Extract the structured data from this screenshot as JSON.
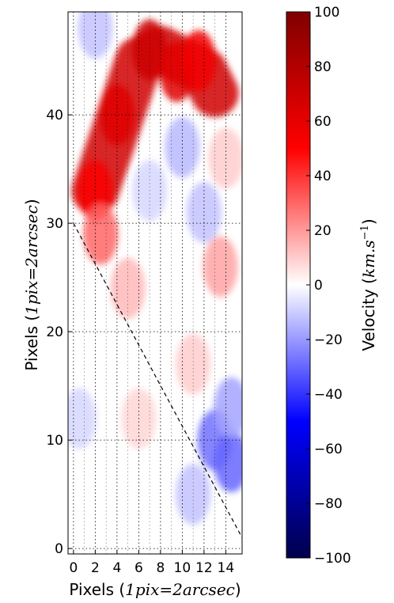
{
  "chart_data": {
    "type": "heatmap",
    "title": "",
    "xlabel": "Pixels (1pix = 2arcsec)",
    "ylabel": "Pixels (1pix = 2arcsec)",
    "xlabel_parts": {
      "plain": "Pixels (",
      "math": "1pix",
      "eq": "=",
      "math2": "2arcsec",
      "close": ")"
    },
    "ylabel_parts": {
      "plain": "Pixels (",
      "math": "1pix",
      "eq": "=",
      "math2": "2arcsec",
      "close": ")"
    },
    "xlim": [
      -0.5,
      15.5
    ],
    "ylim": [
      -0.5,
      49.5
    ],
    "xticks": [
      0,
      2,
      4,
      6,
      8,
      10,
      12,
      14
    ],
    "yticks": [
      0,
      10,
      20,
      30,
      40
    ],
    "grid": true,
    "grid_style": "dotted",
    "colormap": "seismic",
    "colorbar": {
      "label_plain": "Velocity (",
      "label_math": "km.s",
      "label_sup": "−1",
      "label_close": ")",
      "range": [
        -100,
        100
      ],
      "ticks": [
        100,
        80,
        60,
        40,
        20,
        0,
        -20,
        -40,
        -60,
        -80,
        -100
      ],
      "tick_labels": [
        "100",
        "80",
        "60",
        "40",
        "20",
        "0",
        "−20",
        "−40",
        "−60",
        "−80",
        "−100"
      ]
    },
    "dashed_line": {
      "from": [
        0,
        30
      ],
      "to": [
        15.5,
        1
      ],
      "style": "dashed"
    },
    "features": [
      {
        "kind": "redshift_arc",
        "points": [
          [
            2,
            33
          ],
          [
            3,
            36
          ],
          [
            4,
            39
          ],
          [
            5,
            42
          ],
          [
            6,
            45
          ],
          [
            8,
            46
          ],
          [
            10,
            45
          ],
          [
            12,
            44
          ],
          [
            13,
            42
          ]
        ],
        "velocity": 68
      },
      {
        "kind": "blob",
        "x": 2,
        "y": 33,
        "velocity": 52
      },
      {
        "kind": "blob",
        "x": 4,
        "y": 40,
        "velocity": 62
      },
      {
        "kind": "blob",
        "x": 7,
        "y": 46,
        "velocity": 70
      },
      {
        "kind": "blob",
        "x": 9.5,
        "y": 44,
        "velocity": 62
      },
      {
        "kind": "blob",
        "x": 11.5,
        "y": 45,
        "velocity": 55
      },
      {
        "kind": "blob",
        "x": 2.5,
        "y": 29,
        "velocity": 30
      },
      {
        "kind": "blob",
        "x": 5,
        "y": 24,
        "velocity": 14
      },
      {
        "kind": "blob",
        "x": 10,
        "y": 37,
        "velocity": -14
      },
      {
        "kind": "blob",
        "x": 12,
        "y": 31,
        "velocity": -12
      },
      {
        "kind": "blob",
        "x": 13.5,
        "y": 26,
        "velocity": 18
      },
      {
        "kind": "blob",
        "x": 14,
        "y": 36,
        "velocity": 10
      },
      {
        "kind": "blob",
        "x": 11,
        "y": 17,
        "velocity": 10
      },
      {
        "kind": "blob",
        "x": 13,
        "y": 10,
        "velocity": -28
      },
      {
        "kind": "blob",
        "x": 14.5,
        "y": 8,
        "velocity": -30
      },
      {
        "kind": "blob",
        "x": 14.5,
        "y": 13,
        "velocity": -18
      },
      {
        "kind": "blob",
        "x": 11,
        "y": 5,
        "velocity": -12
      },
      {
        "kind": "blob",
        "x": 2,
        "y": 48,
        "velocity": -12
      },
      {
        "kind": "blob",
        "x": 0.5,
        "y": 12,
        "velocity": -8
      },
      {
        "kind": "blob",
        "x": 7,
        "y": 33,
        "velocity": -8
      },
      {
        "kind": "blob",
        "x": 6,
        "y": 12,
        "velocity": 8
      }
    ]
  }
}
